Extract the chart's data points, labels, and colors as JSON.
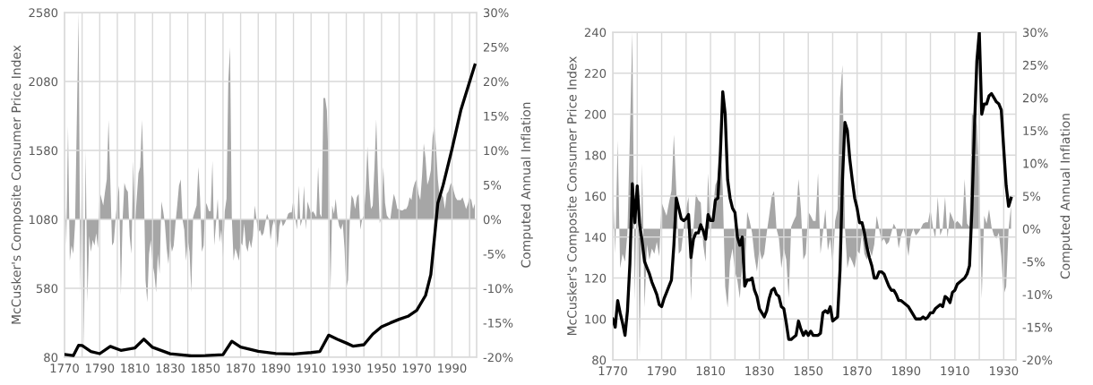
{
  "chart_data": [
    {
      "type": "line",
      "xlabel": null,
      "ylabel": "McCusker's Composite Consumer Price Index",
      "y2label": "Computed Annual Inflation",
      "grid": true,
      "marker": "none",
      "line_style": "solid",
      "xlim": [
        1770,
        2004
      ],
      "xticks": [
        1770,
        {
          "value": 1780,
          "label": null
        },
        1790,
        {
          "value": 1800,
          "label": null
        },
        1810,
        {
          "value": 1820,
          "label": null
        },
        1830,
        {
          "value": 1840,
          "label": null
        },
        1850,
        {
          "value": 1860,
          "label": null
        },
        1870,
        {
          "value": 1880,
          "label": null
        },
        1890,
        {
          "value": 1900,
          "label": null
        },
        1910,
        {
          "value": 1920,
          "label": null
        },
        1930,
        {
          "value": 1940,
          "label": null
        },
        1950,
        {
          "value": 1960,
          "label": null
        },
        1970,
        {
          "value": 1980,
          "label": null
        },
        1990,
        {
          "value": 2000,
          "label": null
        }
      ],
      "ylim": [
        80,
        2580
      ],
      "yticks": [
        80,
        580,
        1080,
        1580,
        2080,
        2580
      ],
      "y2lim": [
        -20,
        30
      ],
      "y2ticks": [
        {
          "value": -20,
          "label": "-20%"
        },
        {
          "value": -15,
          "label": "-15%"
        },
        {
          "value": -10,
          "label": "-10%"
        },
        {
          "value": -5,
          "label": "-5%"
        },
        {
          "value": 0,
          "label": "0%"
        },
        {
          "value": 5,
          "label": "5%"
        },
        {
          "value": 10,
          "label": "10%"
        },
        {
          "value": 15,
          "label": "15%"
        },
        {
          "value": 20,
          "label": "20%"
        },
        {
          "value": 25,
          "label": "25%"
        },
        {
          "value": 30,
          "label": "30%"
        }
      ],
      "x": [
        1770,
        1771,
        1772,
        1773,
        1774,
        1775,
        1776,
        1777,
        1778,
        1779,
        1780,
        1781,
        1782,
        1783,
        1784,
        1785,
        1786,
        1787,
        1788,
        1789,
        1790,
        1791,
        1792,
        1793,
        1794,
        1795,
        1796,
        1797,
        1798,
        1799,
        1800,
        1801,
        1802,
        1803,
        1804,
        1805,
        1806,
        1807,
        1808,
        1809,
        1810,
        1811,
        1812,
        1813,
        1814,
        1815,
        1816,
        1817,
        1818,
        1819,
        1820,
        1821,
        1822,
        1823,
        1824,
        1825,
        1826,
        1827,
        1828,
        1829,
        1830,
        1831,
        1832,
        1833,
        1834,
        1835,
        1836,
        1837,
        1838,
        1839,
        1840,
        1841,
        1842,
        1843,
        1844,
        1845,
        1846,
        1847,
        1848,
        1849,
        1850,
        1851,
        1852,
        1853,
        1854,
        1855,
        1856,
        1857,
        1858,
        1859,
        1860,
        1861,
        1862,
        1863,
        1864,
        1865,
        1866,
        1867,
        1868,
        1869,
        1870,
        1871,
        1872,
        1873,
        1874,
        1875,
        1876,
        1877,
        1878,
        1879,
        1880,
        1881,
        1882,
        1883,
        1884,
        1885,
        1886,
        1887,
        1888,
        1889,
        1890,
        1891,
        1892,
        1893,
        1894,
        1895,
        1896,
        1897,
        1898,
        1899,
        1900,
        1901,
        1902,
        1903,
        1904,
        1905,
        1906,
        1907,
        1908,
        1909,
        1910,
        1911,
        1912,
        1913,
        1914,
        1915,
        1916,
        1917,
        1918,
        1919,
        1920,
        1921,
        1922,
        1923,
        1924,
        1925,
        1926,
        1927,
        1928,
        1929,
        1930,
        1931,
        1932,
        1933,
        1934,
        1935,
        1936,
        1937,
        1938,
        1939,
        1940,
        1941,
        1942,
        1943,
        1944,
        1945,
        1946,
        1947,
        1948,
        1949,
        1950,
        1951,
        1952,
        1953,
        1954,
        1955,
        1956,
        1957,
        1958,
        1959,
        1960,
        1961,
        1962,
        1963,
        1964,
        1965,
        1966,
        1967,
        1968,
        1969,
        1970,
        1971,
        1972,
        1973,
        1974,
        1975,
        1976,
        1977,
        1978,
        1979,
        1980,
        1981,
        1982,
        1983,
        1984,
        1985,
        1986,
        1987,
        1988,
        1989,
        1990,
        1991,
        1992,
        1993,
        1994,
        1995,
        1996,
        1997,
        1998,
        1999,
        2000,
        2001,
        2002,
        2003
      ],
      "series": [
        {
          "type": "area",
          "axis": "y2",
          "color": "#a6a6a6",
          "values": [
            7.6,
            -3.8,
            13.5,
            -6,
            -3.8,
            -5,
            -0.6,
            14.4,
            30,
            -11,
            12,
            -19.5,
            10,
            -12,
            -2.4,
            -4.7,
            -3,
            -3.8,
            -2,
            -4.2,
            4,
            3,
            2,
            4,
            5.8,
            14.4,
            5.8,
            -3.8,
            -3.3,
            0,
            3,
            4.9,
            -11,
            0,
            5.3,
            4.4,
            4,
            -2.4,
            -5,
            8.5,
            -0.6,
            3,
            6.7,
            7.6,
            14.4,
            6,
            -8.8,
            -12,
            -5,
            -3,
            -6.5,
            -7.9,
            -10.6,
            -5,
            -7.9,
            2.6,
            1.2,
            -0.6,
            -4.2,
            -6.5,
            -3,
            -4.7,
            -3.8,
            -0.6,
            2,
            4.9,
            5.8,
            0,
            -1.5,
            -6,
            -3,
            -4.7,
            -10.6,
            0.3,
            1.2,
            2,
            7.6,
            3,
            -4.7,
            -3.8,
            2.6,
            2,
            1.2,
            1.2,
            8.5,
            -3.8,
            -0.6,
            3,
            -3.3,
            -1.5,
            -5.6,
            1.2,
            3,
            20,
            25,
            0.3,
            -6,
            -4.2,
            -5,
            -6,
            -3.3,
            -3.8,
            -0.6,
            -3.8,
            -4.7,
            -3,
            -4.2,
            -2.4,
            2,
            0,
            -2,
            -1.5,
            -2.4,
            -2,
            -0.6,
            0.8,
            0,
            -3,
            -1,
            0,
            -1.5,
            -4.2,
            -1,
            0,
            -1,
            -0.6,
            0,
            0.8,
            1,
            1,
            3,
            0.3,
            -1.5,
            4.9,
            -1,
            0,
            4.9,
            -1.5,
            2.6,
            1.7,
            0.8,
            1.2,
            0.8,
            0.3,
            7.6,
            0.8,
            0.3,
            17.6,
            17.6,
            15.8,
            7.6,
            -10.6,
            2,
            0.8,
            3,
            0.3,
            -1,
            -1.5,
            -0.6,
            -4.2,
            -10,
            -8.8,
            0,
            3.5,
            3,
            1.5,
            3.2,
            3.7,
            -1.5,
            0,
            0.6,
            4.1,
            10.6,
            5,
            1.5,
            2,
            7.6,
            14.5,
            5.8,
            -0.6,
            0.6,
            7.6,
            2.4,
            0.6,
            0.2,
            0,
            2,
            3.7,
            2.8,
            1.5,
            1.5,
            1.3,
            1.3,
            1.5,
            1.5,
            2,
            3.2,
            2.8,
            4.5,
            5.4,
            5.8,
            3.7,
            2.8,
            6.3,
            11,
            8.9,
            5,
            5.8,
            7.1,
            11.9,
            13.6,
            10.2,
            5.8,
            3.2,
            3.7,
            3.2,
            1.5,
            3.7,
            4.1,
            5,
            5.4,
            4.1,
            3.2,
            2.8,
            2.8,
            2.8,
            3.2,
            2.4,
            1.5,
            2.2,
            3.2,
            2.8,
            1.5,
            2.3
          ]
        },
        {
          "color": "#000000",
          "x": [
            1770,
            1775,
            1778,
            1780,
            1785,
            1790,
            1796,
            1802,
            1810,
            1815,
            1820,
            1830,
            1842,
            1850,
            1860,
            1865,
            1870,
            1880,
            1890,
            1900,
            1910,
            1915,
            1920,
            1925,
            1930,
            1934,
            1940,
            1945,
            1950,
            1955,
            1960,
            1965,
            1970,
            1975,
            1978,
            1980,
            1982,
            1985,
            1990,
            1995,
            2000,
            2003
          ],
          "values": [
            100,
            92,
            166,
            165,
            122,
            106,
            159,
            130,
            148,
            211,
            152,
            105,
            90,
            92,
            99,
            196,
            154,
            123,
            107,
            103,
            114,
            122,
            240,
            210,
            183,
            160,
            171,
            247,
            301,
            329,
            355,
            377,
            420,
            528,
            680,
            940,
            1199,
            1329,
            1589,
            1870,
            2076,
            2200
          ]
        }
      ]
    },
    {
      "type": "line",
      "xlabel": null,
      "ylabel": "McCusker's Composite Consumer Price Index",
      "y2label": "Computed Annual Inflation",
      "grid": true,
      "marker": "none",
      "line_style": "solid",
      "xlim": [
        1770,
        1935
      ],
      "xticks": [
        1770,
        {
          "value": 1780,
          "label": null
        },
        1790,
        {
          "value": 1800,
          "label": null
        },
        1810,
        {
          "value": 1820,
          "label": null
        },
        1830,
        {
          "value": 1840,
          "label": null
        },
        1850,
        {
          "value": 1860,
          "label": null
        },
        1870,
        {
          "value": 1880,
          "label": null
        },
        1890,
        {
          "value": 1900,
          "label": null
        },
        1910,
        {
          "value": 1920,
          "label": null
        },
        1930
      ],
      "ylim": [
        80,
        240
      ],
      "yticks": [
        80,
        100,
        120,
        140,
        160,
        180,
        200,
        220,
        240
      ],
      "y2lim": [
        -20,
        30
      ],
      "y2ticks": [
        {
          "value": -20,
          "label": "-20%"
        },
        {
          "value": -15,
          "label": "-15%"
        },
        {
          "value": -10,
          "label": "-10%"
        },
        {
          "value": -5,
          "label": "-5%"
        },
        {
          "value": 0,
          "label": "0%"
        },
        {
          "value": 5,
          "label": "5%"
        },
        {
          "value": 10,
          "label": "10%"
        },
        {
          "value": 15,
          "label": "15%"
        },
        {
          "value": 20,
          "label": "20%"
        },
        {
          "value": 25,
          "label": "25%"
        },
        {
          "value": 30,
          "label": "30%"
        }
      ],
      "x": [
        1770,
        1771,
        1772,
        1773,
        1774,
        1775,
        1776,
        1777,
        1778,
        1779,
        1780,
        1781,
        1782,
        1783,
        1784,
        1785,
        1786,
        1787,
        1788,
        1789,
        1790,
        1791,
        1792,
        1793,
        1794,
        1795,
        1796,
        1797,
        1798,
        1799,
        1800,
        1801,
        1802,
        1803,
        1804,
        1805,
        1806,
        1807,
        1808,
        1809,
        1810,
        1811,
        1812,
        1813,
        1814,
        1815,
        1816,
        1817,
        1818,
        1819,
        1820,
        1821,
        1822,
        1823,
        1824,
        1825,
        1826,
        1827,
        1828,
        1829,
        1830,
        1831,
        1832,
        1833,
        1834,
        1835,
        1836,
        1837,
        1838,
        1839,
        1840,
        1841,
        1842,
        1843,
        1844,
        1845,
        1846,
        1847,
        1848,
        1849,
        1850,
        1851,
        1852,
        1853,
        1854,
        1855,
        1856,
        1857,
        1858,
        1859,
        1860,
        1861,
        1862,
        1863,
        1864,
        1865,
        1866,
        1867,
        1868,
        1869,
        1870,
        1871,
        1872,
        1873,
        1874,
        1875,
        1876,
        1877,
        1878,
        1879,
        1880,
        1881,
        1882,
        1883,
        1884,
        1885,
        1886,
        1887,
        1888,
        1889,
        1890,
        1891,
        1892,
        1893,
        1894,
        1895,
        1896,
        1897,
        1898,
        1899,
        1900,
        1901,
        1902,
        1903,
        1904,
        1905,
        1906,
        1907,
        1908,
        1909,
        1910,
        1911,
        1912,
        1913,
        1914,
        1915,
        1916,
        1917,
        1918,
        1919,
        1920,
        1921,
        1922,
        1923,
        1924,
        1925,
        1926,
        1927,
        1928,
        1929,
        1930,
        1931,
        1932,
        1933
      ],
      "series": [
        {
          "type": "area",
          "axis": "y2",
          "color": "#a6a6a6",
          "values": [
            7.6,
            -3.8,
            13.5,
            -6,
            -3.8,
            -5,
            -0.6,
            14.4,
            30,
            -11,
            12,
            -19.5,
            10,
            -12,
            -2.4,
            -4.7,
            -3,
            -3.8,
            -2,
            -4.2,
            4,
            3,
            2,
            4,
            5.8,
            14.4,
            5.8,
            -3.8,
            -3.3,
            0,
            3,
            4.9,
            -11,
            0,
            5.3,
            4.4,
            4,
            -2.4,
            -5,
            8.5,
            -0.6,
            3,
            6.7,
            7.6,
            14.4,
            6,
            -8.8,
            -12,
            -5,
            -3,
            -6.5,
            -7.9,
            -10.6,
            -5,
            -7.9,
            2.6,
            1.2,
            -0.6,
            -4.2,
            -6.5,
            -3,
            -4.7,
            -3.8,
            -0.6,
            2,
            4.9,
            5.8,
            0,
            -1.5,
            -6,
            -3,
            -4.7,
            -10.6,
            0.3,
            1.2,
            2,
            7.6,
            3,
            -4.7,
            -3.8,
            2.6,
            2,
            1.2,
            1.2,
            8.5,
            -3.8,
            -0.6,
            3,
            -3.3,
            -1.5,
            -5.6,
            1.2,
            3,
            20,
            25,
            0.3,
            -6,
            -4.2,
            -5,
            -6,
            -3.3,
            -3.8,
            -0.6,
            -3.8,
            -4.7,
            -3,
            -4.2,
            -2.4,
            2,
            0,
            -2,
            -1.5,
            -2.4,
            -2,
            -0.6,
            0.8,
            0,
            -3,
            -1,
            0,
            -1.5,
            -4.2,
            -1,
            0,
            -1,
            -0.6,
            0,
            0.8,
            1,
            1,
            3,
            0.3,
            -1.5,
            4.9,
            -1,
            0,
            4.9,
            -1.5,
            2.6,
            1.7,
            0.8,
            1.2,
            0.8,
            0.3,
            7.6,
            0.8,
            0.3,
            17.6,
            17.6,
            15.8,
            7.6,
            -10.6,
            2,
            0.8,
            3,
            0.3,
            -1,
            -1.5,
            -0.6,
            -4.2,
            -10,
            -8.8,
            0,
            3.5
          ]
        },
        {
          "color": "#000000",
          "values": [
            100,
            96,
            109,
            103,
            98,
            92,
            104,
            127,
            166,
            147,
            165,
            146,
            138,
            128,
            125,
            122,
            118,
            115,
            112,
            107,
            106,
            110,
            113,
            116,
            119,
            136,
            159,
            154,
            149,
            148,
            149,
            151,
            130,
            139,
            142,
            142,
            146,
            143,
            139,
            151,
            148,
            148,
            158,
            159,
            180,
            211,
            200,
            168,
            159,
            154,
            152,
            140,
            136,
            140,
            116,
            119,
            119,
            120,
            114,
            111,
            105,
            103,
            101,
            104,
            110,
            114,
            115,
            112,
            111,
            106,
            105,
            98,
            90,
            90,
            91,
            92,
            99,
            95,
            92,
            94,
            92,
            94,
            92,
            92,
            92,
            93,
            103,
            104,
            103,
            106,
            99,
            100,
            101,
            124,
            168,
            196,
            192,
            178,
            168,
            159,
            154,
            147,
            147,
            142,
            135,
            130,
            126,
            120,
            120,
            123,
            123,
            122,
            119,
            116,
            114,
            114,
            112,
            109,
            109,
            108,
            107,
            106,
            104,
            102,
            100,
            100,
            100,
            101,
            100,
            101,
            103,
            103,
            105,
            106,
            107,
            106,
            111,
            110,
            108,
            113,
            114,
            117,
            118,
            119,
            120,
            122,
            126,
            154,
            193,
            226,
            240,
            200,
            205,
            205,
            209,
            210,
            208,
            206,
            205,
            202,
            183,
            165,
            155,
            159
          ]
        }
      ]
    }
  ]
}
